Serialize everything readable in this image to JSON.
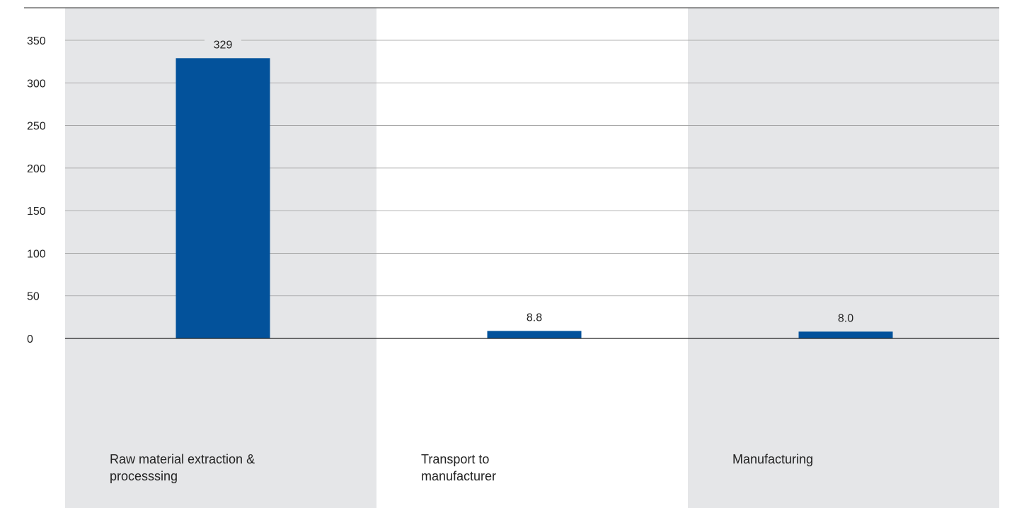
{
  "chart_data": {
    "type": "bar",
    "categories": [
      "Raw material extraction &\nprocesssing",
      "Transport to\nmanufacturer",
      "Manufacturing"
    ],
    "values": [
      329,
      8.8,
      8.0
    ],
    "value_labels": [
      "329",
      "8.8",
      "8.0"
    ],
    "yticks": [
      0,
      50,
      100,
      150,
      200,
      250,
      300,
      350
    ],
    "ylim": [
      0,
      350
    ],
    "title": "",
    "xlabel": "",
    "ylabel": "",
    "grid": true,
    "legend": "none",
    "bar_color": "#03529b",
    "band_color": "#e5e6e8",
    "gridline_color": "#9a9a9a"
  }
}
